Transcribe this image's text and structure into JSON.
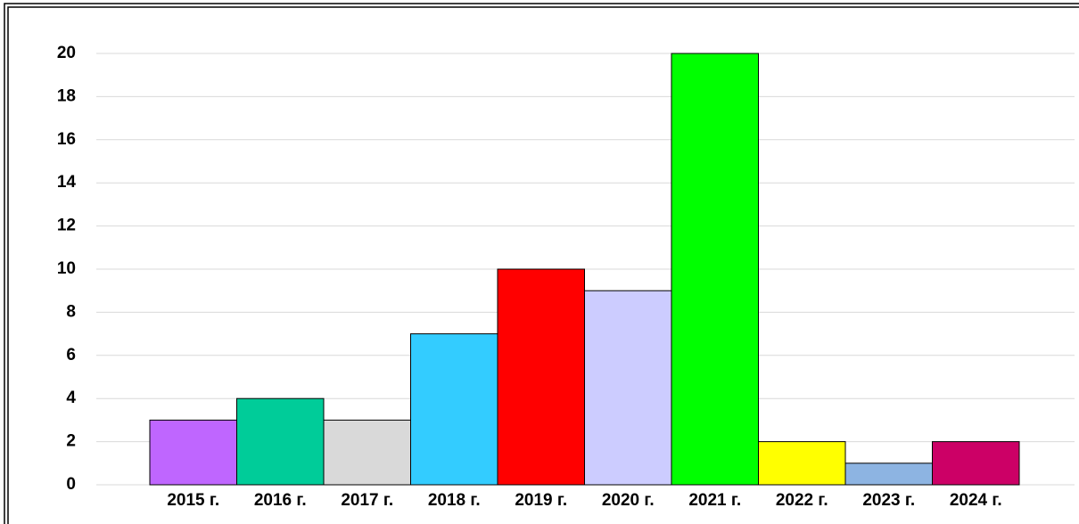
{
  "chart_data": {
    "type": "bar",
    "categories": [
      "2015 г.",
      "2016 г.",
      "2017 г.",
      "2018 г.",
      "2019 г.",
      "2020 г.",
      "2021 г.",
      "2022 г.",
      "2023 г.",
      "2024 г."
    ],
    "values": [
      3,
      4,
      3,
      7,
      10,
      9,
      20,
      2,
      1,
      2
    ],
    "colors": [
      "#bf66ff",
      "#00cc99",
      "#d9d9d9",
      "#33ccff",
      "#ff0000",
      "#ccccff",
      "#00ff00",
      "#ffff00",
      "#8db4e2",
      "#cc0066"
    ],
    "ylim": [
      0,
      20
    ],
    "yticks": [
      0,
      2,
      4,
      6,
      8,
      10,
      12,
      14,
      16,
      18,
      20
    ],
    "grid": true
  }
}
